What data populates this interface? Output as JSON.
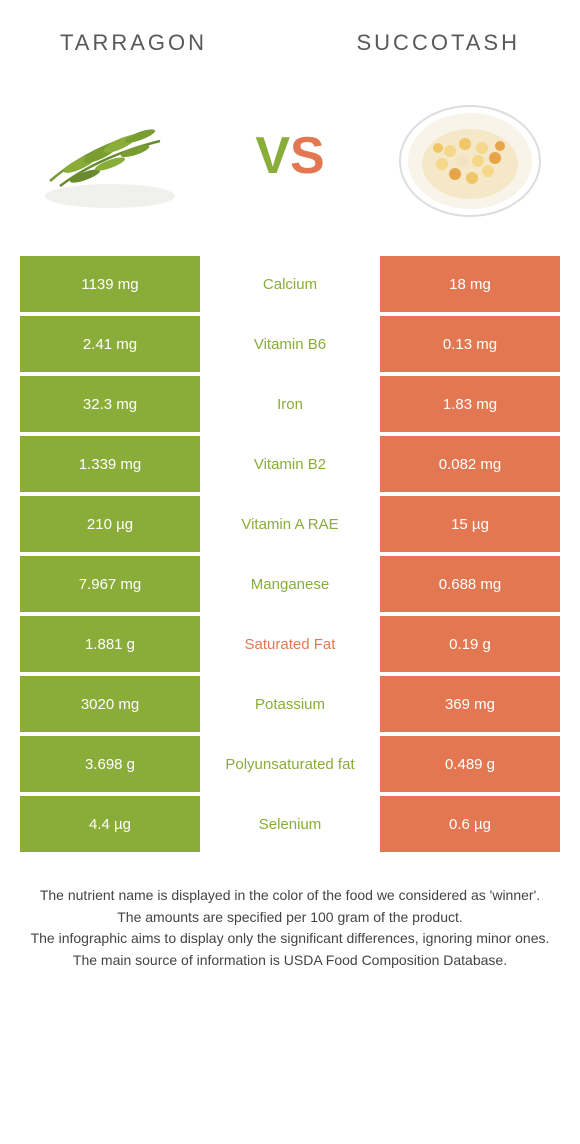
{
  "titles": {
    "left": "Tarragon",
    "right": "Succotash"
  },
  "vs": {
    "v": "V",
    "s": "S"
  },
  "colors": {
    "left": "#8aad3a",
    "right": "#e37752",
    "text": "#333333"
  },
  "rows": [
    {
      "left": "1139 mg",
      "label": "Calcium",
      "right": "18 mg",
      "winner": "left"
    },
    {
      "left": "2.41 mg",
      "label": "Vitamin B6",
      "right": "0.13 mg",
      "winner": "left"
    },
    {
      "left": "32.3 mg",
      "label": "Iron",
      "right": "1.83 mg",
      "winner": "left"
    },
    {
      "left": "1.339 mg",
      "label": "Vitamin B2",
      "right": "0.082 mg",
      "winner": "left"
    },
    {
      "left": "210 µg",
      "label": "Vitamin A RAE",
      "right": "15 µg",
      "winner": "left"
    },
    {
      "left": "7.967 mg",
      "label": "Manganese",
      "right": "0.688 mg",
      "winner": "left"
    },
    {
      "left": "1.881 g",
      "label": "Saturated Fat",
      "right": "0.19 g",
      "winner": "right"
    },
    {
      "left": "3020 mg",
      "label": "Potassium",
      "right": "369 mg",
      "winner": "left"
    },
    {
      "left": "3.698 g",
      "label": "Polyunsaturated fat",
      "right": "0.489 g",
      "winner": "left"
    },
    {
      "left": "4.4 µg",
      "label": "Selenium",
      "right": "0.6 µg",
      "winner": "left"
    }
  ],
  "footer": [
    "The nutrient name is displayed in the color of the food we considered as 'winner'.",
    "The amounts are specified per 100 gram of the product.",
    "The infographic aims to display only the significant differences, ignoring minor ones.",
    "The main source of information is USDA Food Composition Database."
  ]
}
